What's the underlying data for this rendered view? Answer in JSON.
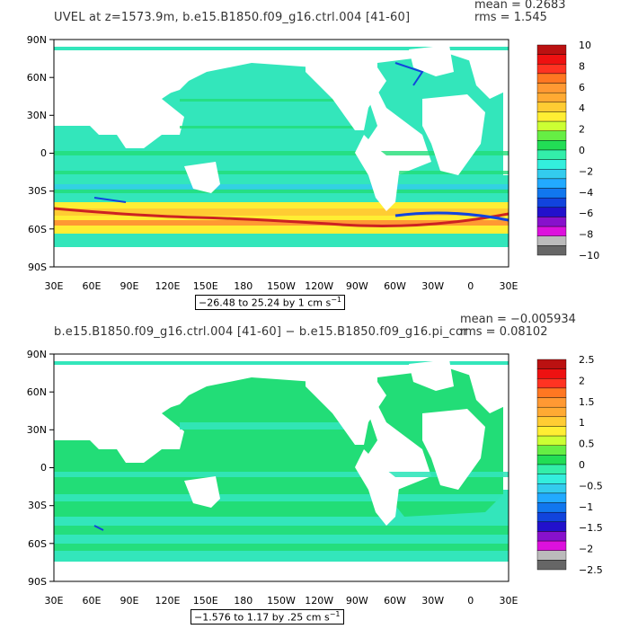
{
  "colors": {
    "ocean_base": "#33e6bb",
    "ocean_band": "#22dd77",
    "land": "#ffffff",
    "warm_band": "#ffee33",
    "strong_pos": "#cc2222",
    "strong_neg": "#1144dd"
  },
  "axes": {
    "lat_labels": [
      "90N",
      "60N",
      "30N",
      "0",
      "30S",
      "60S",
      "90S"
    ],
    "lon_labels": [
      "30E",
      "60E",
      "90E",
      "120E",
      "150E",
      "180",
      "150W",
      "120W",
      "90W",
      "60W",
      "30W",
      "0",
      "30E"
    ]
  },
  "panels": [
    {
      "title": "UVEL at z=1573.9m, b.e15.B1850.f09_g16.ctrl.004 [41-60]",
      "mean": "mean = 0.2683",
      "rms": "rms = 1.545",
      "range_text": "−26.48 to 25.24 by 1 cm s",
      "range_exp": "−1",
      "colorbar_labels": [
        "10",
        "8",
        "6",
        "4",
        "2",
        "0",
        "−2",
        "−4",
        "−6",
        "−8",
        "−10"
      ],
      "colorbar_colors": [
        "#bb1111",
        "#ee1111",
        "#ff3322",
        "#ff7722",
        "#ff9933",
        "#ffaa33",
        "#ffcc33",
        "#ffee33",
        "#ccff33",
        "#66ee44",
        "#22dd55",
        "#33eeaa",
        "#33eedd",
        "#33ccee",
        "#22aaff",
        "#1177ee",
        "#1144dd",
        "#2211cc",
        "#8811cc",
        "#dd11dd",
        "#bbbbbb",
        "#666666"
      ]
    },
    {
      "title": "b.e15.B1850.f09_g16.ctrl.004 [41-60] − b.e15.B1850.f09_g16.pi_control.36 [41-60]",
      "mean": "mean = −0.005934",
      "rms": "rms = 0.08102",
      "range_text": "−1.576 to 1.17 by .25 cm s",
      "range_exp": "−1",
      "colorbar_labels": [
        "2.5",
        "2",
        "1.5",
        "1",
        "0.5",
        "0",
        "−0.5",
        "−1",
        "−1.5",
        "−2",
        "−2.5"
      ],
      "colorbar_colors": [
        "#bb1111",
        "#ee1111",
        "#ff3322",
        "#ff7722",
        "#ff9933",
        "#ffaa33",
        "#ffcc33",
        "#ffee33",
        "#ccff33",
        "#66ee44",
        "#22dd55",
        "#33eeaa",
        "#33eedd",
        "#33ccee",
        "#22aaff",
        "#1177ee",
        "#1144dd",
        "#2211cc",
        "#8811cc",
        "#dd11dd",
        "#bbbbbb",
        "#666666"
      ]
    }
  ]
}
